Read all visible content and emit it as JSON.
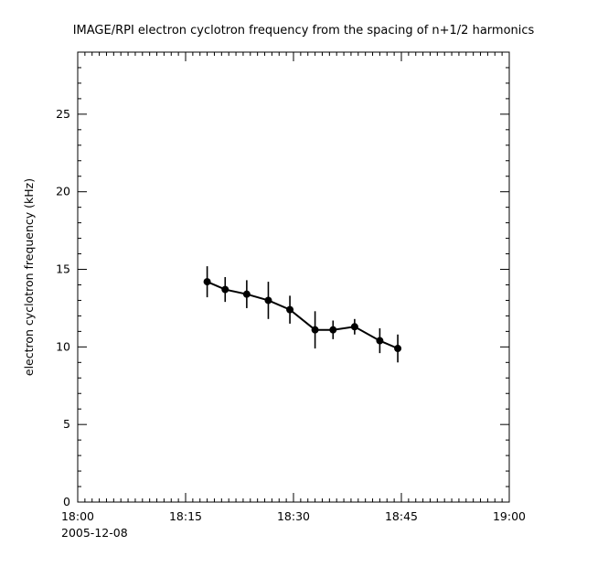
{
  "window": {
    "background": "#ffffff"
  },
  "chart_data": {
    "type": "line",
    "title": "IMAGE/RPI  electron cyclotron frequency from the spacing of n+1/2 harmonics",
    "ylabel": "electron cyclotron frequency (kHz)",
    "date_label": "2005-12-08",
    "x_axis": {
      "units": "time (HH:MM), minutes after 18:00",
      "xlim_minutes": [
        0,
        60
      ],
      "major_ticks": [
        {
          "minute": 0,
          "label": "18:00"
        },
        {
          "minute": 15,
          "label": "18:15"
        },
        {
          "minute": 30,
          "label": "18:30"
        },
        {
          "minute": 45,
          "label": "18:45"
        },
        {
          "minute": 60,
          "label": "19:00"
        }
      ],
      "minor_tick_step_minutes": 1
    },
    "y_axis": {
      "ylim": [
        0,
        29
      ],
      "major_ticks": [
        0,
        5,
        10,
        15,
        20,
        25
      ],
      "minor_tick_step": 1
    },
    "grid": false,
    "legend": "none",
    "series": [
      {
        "name": "electron cyclotron frequency",
        "marker": "filled-circle",
        "line_color": "#000000",
        "x_minutes": [
          18,
          20.5,
          23.5,
          26.5,
          29.5,
          33,
          35.5,
          38.5,
          42,
          44.5
        ],
        "values": [
          14.2,
          13.7,
          13.4,
          13.0,
          12.4,
          11.1,
          11.1,
          11.3,
          10.4,
          9.9
        ],
        "errors": [
          1.0,
          0.8,
          0.9,
          1.2,
          0.9,
          1.2,
          0.6,
          0.5,
          0.8,
          0.9
        ]
      }
    ]
  }
}
